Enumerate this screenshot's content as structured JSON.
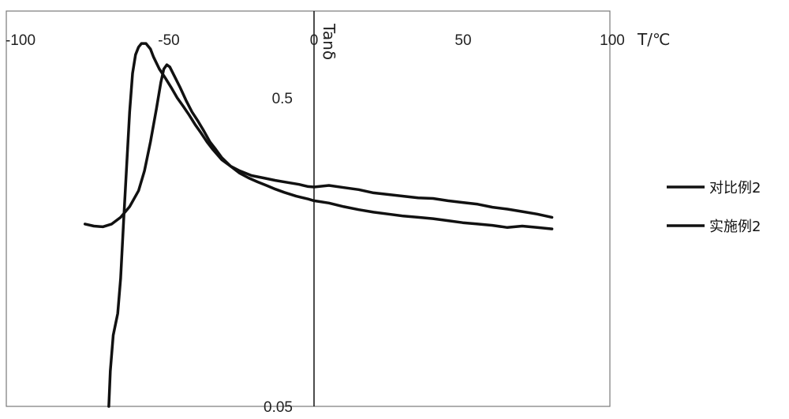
{
  "chart_data": {
    "type": "line",
    "xlabel": "T/℃",
    "ylabel": "Tanδ",
    "x_ticks": [
      "-100",
      "-50",
      "0",
      "50",
      "100"
    ],
    "y_ticks": [
      "0.5",
      "0.05"
    ],
    "xlim": [
      -100,
      100
    ],
    "ylim": [
      0.05,
      0.8
    ],
    "y_scale": "log",
    "grid": false,
    "legend_position": "right",
    "series": [
      {
        "name": "对比例2",
        "color": "#111111",
        "points": [
          [
            -69,
            0.05
          ],
          [
            -68.5,
            0.065
          ],
          [
            -67.5,
            0.085
          ],
          [
            -66,
            0.1
          ],
          [
            -65,
            0.13
          ],
          [
            -64,
            0.2
          ],
          [
            -63,
            0.3
          ],
          [
            -62,
            0.45
          ],
          [
            -61,
            0.6
          ],
          [
            -60,
            0.69
          ],
          [
            -59,
            0.73
          ],
          [
            -58,
            0.75
          ],
          [
            -56.5,
            0.75
          ],
          [
            -55,
            0.72
          ],
          [
            -54,
            0.68
          ],
          [
            -52,
            0.62
          ],
          [
            -50,
            0.58
          ],
          [
            -48,
            0.54
          ],
          [
            -46,
            0.5
          ],
          [
            -44,
            0.47
          ],
          [
            -42,
            0.44
          ],
          [
            -40,
            0.41
          ],
          [
            -38,
            0.385
          ],
          [
            -36,
            0.36
          ],
          [
            -34,
            0.34
          ],
          [
            -31,
            0.315
          ],
          [
            -28,
            0.3
          ],
          [
            -25,
            0.29
          ],
          [
            -21,
            0.28
          ],
          [
            -17,
            0.275
          ],
          [
            -13,
            0.27
          ],
          [
            -9,
            0.266
          ],
          [
            -5,
            0.262
          ],
          [
            -2,
            0.258
          ],
          [
            0,
            0.257
          ],
          [
            5,
            0.26
          ],
          [
            10,
            0.256
          ],
          [
            15,
            0.252
          ],
          [
            20,
            0.246
          ],
          [
            25,
            0.243
          ],
          [
            30,
            0.24
          ],
          [
            35,
            0.237
          ],
          [
            40,
            0.236
          ],
          [
            45,
            0.232
          ],
          [
            50,
            0.229
          ],
          [
            55,
            0.226
          ],
          [
            60,
            0.221
          ],
          [
            65,
            0.218
          ],
          [
            70,
            0.214
          ],
          [
            75,
            0.21
          ],
          [
            80,
            0.205
          ]
        ]
      },
      {
        "name": "实施例2",
        "color": "#111111",
        "points": [
          [
            -77,
            0.195
          ],
          [
            -74,
            0.192
          ],
          [
            -71,
            0.191
          ],
          [
            -68,
            0.195
          ],
          [
            -65,
            0.205
          ],
          [
            -62,
            0.222
          ],
          [
            -59,
            0.25
          ],
          [
            -57,
            0.29
          ],
          [
            -55,
            0.36
          ],
          [
            -53,
            0.46
          ],
          [
            -51.5,
            0.56
          ],
          [
            -50.5,
            0.62
          ],
          [
            -49.5,
            0.64
          ],
          [
            -48.5,
            0.63
          ],
          [
            -47,
            0.59
          ],
          [
            -45,
            0.54
          ],
          [
            -43,
            0.49
          ],
          [
            -41,
            0.45
          ],
          [
            -39,
            0.42
          ],
          [
            -37,
            0.39
          ],
          [
            -35,
            0.36
          ],
          [
            -33,
            0.34
          ],
          [
            -31,
            0.32
          ],
          [
            -28,
            0.3
          ],
          [
            -25,
            0.285
          ],
          [
            -22,
            0.275
          ],
          [
            -19,
            0.267
          ],
          [
            -16,
            0.26
          ],
          [
            -13,
            0.253
          ],
          [
            -10,
            0.247
          ],
          [
            -6,
            0.24
          ],
          [
            -2,
            0.235
          ],
          [
            0,
            0.232
          ],
          [
            5,
            0.228
          ],
          [
            10,
            0.222
          ],
          [
            15,
            0.217
          ],
          [
            20,
            0.213
          ],
          [
            25,
            0.21
          ],
          [
            30,
            0.207
          ],
          [
            35,
            0.205
          ],
          [
            40,
            0.203
          ],
          [
            45,
            0.2
          ],
          [
            50,
            0.197
          ],
          [
            55,
            0.195
          ],
          [
            60,
            0.193
          ],
          [
            65,
            0.19
          ],
          [
            70,
            0.192
          ],
          [
            75,
            0.19
          ],
          [
            80,
            0.188
          ]
        ]
      }
    ]
  }
}
